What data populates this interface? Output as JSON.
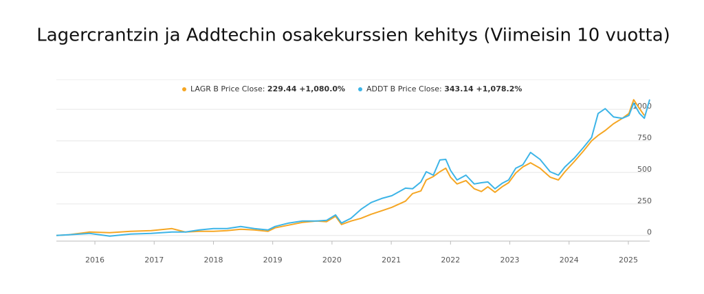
{
  "chart_data": {
    "type": "line",
    "title": "Lagercrantzin ja Addtechin osakekurssien kehitys (Viimeisin 10 vuotta)",
    "x": [
      2015.35,
      2015.56,
      2015.91,
      2016.25,
      2016.6,
      2016.95,
      2017.3,
      2017.53,
      2017.76,
      2018.0,
      2018.23,
      2018.46,
      2018.69,
      2018.92,
      2019.04,
      2019.27,
      2019.5,
      2019.74,
      2019.91,
      2020.06,
      2020.16,
      2020.32,
      2020.49,
      2020.66,
      2020.84,
      2021.01,
      2021.24,
      2021.36,
      2021.5,
      2021.59,
      2021.71,
      2021.82,
      2021.92,
      2022.0,
      2022.11,
      2022.26,
      2022.4,
      2022.52,
      2022.63,
      2022.75,
      2022.87,
      2022.98,
      2023.1,
      2023.22,
      2023.35,
      2023.51,
      2023.68,
      2023.82,
      2023.93,
      2024.09,
      2024.24,
      2024.38,
      2024.49,
      2024.61,
      2024.75,
      2024.9,
      2025.01,
      2025.09,
      2025.19,
      2025.27,
      2025.36
    ],
    "series": [
      {
        "name": "LAGR B Price Close:",
        "value_label": "229.44 +1,080.0%",
        "color": "#f5a623",
        "values": [
          0,
          5,
          27,
          22,
          33,
          38,
          54,
          27,
          33,
          33,
          38,
          49,
          43,
          33,
          60,
          82,
          103,
          114,
          109,
          152,
          87,
          114,
          136,
          168,
          196,
          223,
          272,
          332,
          353,
          440,
          467,
          505,
          533,
          462,
          408,
          435,
          370,
          348,
          386,
          342,
          386,
          418,
          495,
          543,
          576,
          533,
          462,
          440,
          505,
          587,
          668,
          750,
          793,
          832,
          886,
          929,
          967,
          1076,
          1005,
          951,
          null
        ]
      },
      {
        "name": "ADDT B Price Close:",
        "value_label": "343.14 +1,078.2%",
        "color": "#3cb4e7",
        "values": [
          0,
          5,
          16,
          -5,
          11,
          16,
          27,
          27,
          43,
          54,
          54,
          71,
          54,
          43,
          71,
          98,
          114,
          114,
          120,
          163,
          98,
          136,
          207,
          261,
          293,
          315,
          375,
          370,
          424,
          505,
          478,
          598,
          603,
          516,
          440,
          478,
          408,
          418,
          424,
          370,
          413,
          440,
          533,
          560,
          658,
          603,
          505,
          478,
          543,
          614,
          696,
          777,
          967,
          1005,
          940,
          929,
          951,
          1049,
          967,
          929,
          1078
        ]
      }
    ],
    "xlim": [
      2015.35,
      2025.36
    ],
    "xticks": [
      2016,
      2017,
      2018,
      2019,
      2020,
      2021,
      2022,
      2023,
      2024,
      2025
    ],
    "ylim": [
      -45,
      1235
    ],
    "yticks": [
      0,
      250,
      500,
      750,
      1000
    ],
    "grid": true
  }
}
